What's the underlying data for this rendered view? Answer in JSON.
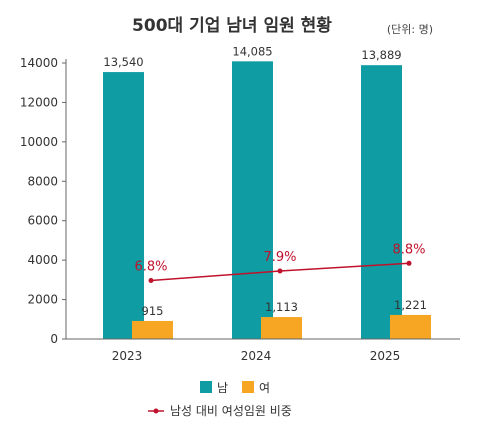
{
  "chart_data": {
    "type": "bar",
    "title": "500대 기업 남녀 임원 현황",
    "unit_note": "(단위: 명)",
    "categories": [
      "2023",
      "2024",
      "2025"
    ],
    "ylim": [
      0,
      14000
    ],
    "yticks": [
      0,
      2000,
      4000,
      6000,
      8000,
      10000,
      12000,
      14000
    ],
    "grid": false,
    "series": [
      {
        "name": "남",
        "values": [
          13540,
          14085,
          13889
        ],
        "labels": [
          "13,540",
          "14,085",
          "13,889"
        ],
        "color": "#0f9da3"
      },
      {
        "name": "여",
        "values": [
          915,
          1113,
          1221
        ],
        "labels": [
          "915",
          "1,113",
          "1,221"
        ],
        "color": "#f6a623"
      }
    ],
    "line_series": {
      "name": "남성 대비 여성임원 비중",
      "values": [
        6.8,
        7.9,
        8.8
      ],
      "labels": [
        "6.8%",
        "7.9%",
        "8.8%"
      ],
      "color": "#c0122c"
    },
    "legend_placement": "bottom"
  }
}
